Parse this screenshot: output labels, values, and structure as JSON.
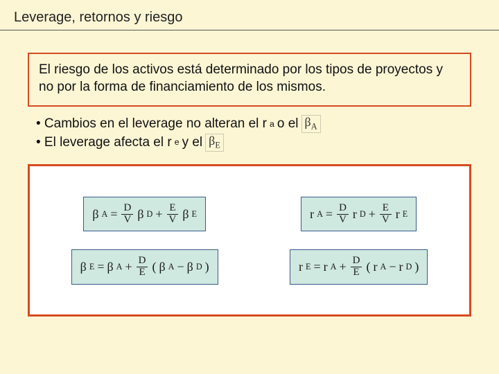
{
  "title": "Leverage, retornos y riesgo",
  "statement": "El riesgo de los activos está determinado por los tipos de proyectos y no por la forma de financiamiento de los mismos.",
  "bullet1_prefix": "• Cambios en el leverage no alteran el r",
  "bullet1_sub": "a",
  "bullet1_mid": "  o el",
  "bullet1_beta": "βA",
  "bullet2_prefix": "• El leverage afecta el r",
  "bullet2_sub": "e",
  "bullet2_mid": " y el",
  "bullet2_beta": "βE",
  "formulas": {
    "beta_a": {
      "lhs": "β",
      "lhs_sub": "A",
      "t1v": "β",
      "t1s": "D",
      "t2v": "β",
      "t2s": "E"
    },
    "beta_e": {
      "lhs": "β",
      "lhs_sub": "E",
      "base": "β",
      "base_sub": "A",
      "diff1": "β",
      "diff1s": "A",
      "diff2": "β",
      "diff2s": "D"
    },
    "r_a": {
      "lhs": "r",
      "lhs_sub": "A",
      "t1v": "r",
      "t1s": "D",
      "t2v": "r",
      "t2s": "E"
    },
    "r_e": {
      "lhs": "r",
      "lhs_sub": "E",
      "base": "r",
      "base_sub": "A",
      "diff1": "r",
      "diff1s": "A",
      "diff2": "r",
      "diff2s": "D"
    },
    "frac_DV": {
      "num": "D",
      "den": "V"
    },
    "frac_EV": {
      "num": "E",
      "den": "V"
    },
    "frac_DE": {
      "num": "D",
      "den": "E"
    },
    "eq": "=",
    "plus": "+",
    "minus": "−",
    "lparen": "(",
    "rparen": ")"
  },
  "colors": {
    "slide_bg": "#fcf6d5",
    "accent_border": "#d64a1f",
    "formula_fill": "#cfe8e0",
    "formula_border": "#3a5a8a"
  }
}
